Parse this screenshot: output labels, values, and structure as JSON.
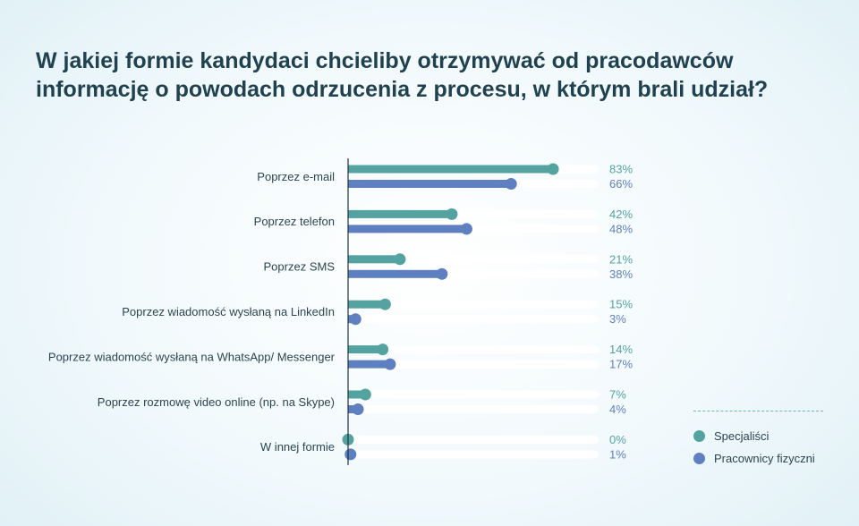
{
  "title": {
    "line1": "W jakiej formie kandydaci chcieliby otrzymywać od pracodawców",
    "line2": "informację o powodach odrzucenia z procesu, w którym brali udział?"
  },
  "legend": {
    "items": [
      {
        "label": "Specjaliści",
        "color": "#54a3a0"
      },
      {
        "label": "Pracownicy fizyczni",
        "color": "#5f80c0"
      }
    ]
  },
  "chart_data": {
    "type": "bar",
    "orientation": "horizontal",
    "title": "W jakiej formie kandydaci chcieliby otrzymywać od pracodawców informację o powodach odrzucenia z procesu, w którym brali udział?",
    "categories": [
      "Poprzez e-mail",
      "Poprzez telefon",
      "Poprzez SMS",
      "Poprzez wiadomość wysłaną na LinkedIn",
      "Poprzez wiadomość wysłaną na WhatsApp/ Messenger",
      "Poprzez rozmowę video online (np. na Skype)",
      "W innej formie"
    ],
    "series": [
      {
        "name": "Specjaliści",
        "color": "#54a3a0",
        "values": [
          83,
          42,
          21,
          15,
          14,
          7,
          0
        ]
      },
      {
        "name": "Pracownicy fizyczni",
        "color": "#5f80c0",
        "values": [
          66,
          48,
          38,
          3,
          17,
          4,
          1
        ]
      }
    ],
    "value_suffix": "%",
    "xlim": [
      0,
      100
    ],
    "grid": false,
    "legend_position": "bottom-right"
  }
}
